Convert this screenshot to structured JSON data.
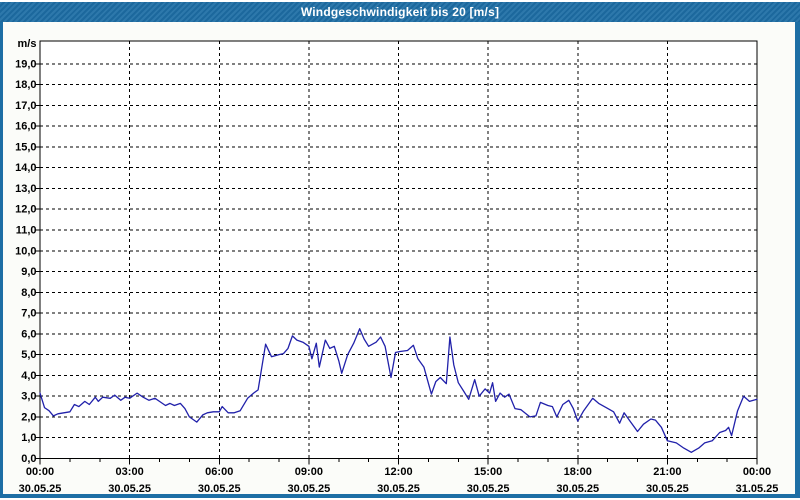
{
  "window": {
    "title": "Windgeschwindigkeit bis 20 [m/s]"
  },
  "colors": {
    "titlebar_blue": "#1d6ea5",
    "frame_blue": "#1d6ea5",
    "page_background": "#fbfcf9",
    "plot_background": "#ffffff",
    "grid_color": "#000000",
    "axis_color": "#000000",
    "series_line": "#2121aa",
    "title_text": "#ffffff",
    "label_text": "#000000"
  },
  "chart_data": {
    "type": "line",
    "title": "Windgeschwindigkeit bis 20 [m/s]",
    "ylabel_unit": "m/s",
    "xlabel": "",
    "ylim": [
      0,
      20
    ],
    "xlim_hours": [
      0,
      24
    ],
    "grid": "dashed",
    "legend": "none",
    "y_tick_step": 1.0,
    "y_tick_labels": [
      "0,0",
      "1,0",
      "2,0",
      "3,0",
      "4,0",
      "5,0",
      "6,0",
      "7,0",
      "8,0",
      "9,0",
      "10,0",
      "11,0",
      "12,0",
      "13,0",
      "14,0",
      "15,0",
      "16,0",
      "17,0",
      "18,0",
      "19,0"
    ],
    "x_major_ticks": [
      {
        "hour": 0,
        "time": "00:00",
        "date": "30.05.25"
      },
      {
        "hour": 3,
        "time": "03:00",
        "date": "30.05.25"
      },
      {
        "hour": 6,
        "time": "06:00",
        "date": "30.05.25"
      },
      {
        "hour": 9,
        "time": "09:00",
        "date": "30.05.25"
      },
      {
        "hour": 12,
        "time": "12:00",
        "date": "30.05.25"
      },
      {
        "hour": 15,
        "time": "15:00",
        "date": "30.05.25"
      },
      {
        "hour": 18,
        "time": "18:00",
        "date": "30.05.25"
      },
      {
        "hour": 21,
        "time": "21:00",
        "date": "30.05.25"
      },
      {
        "hour": 24,
        "time": "00:00",
        "date": "31.05.25"
      }
    ],
    "x_minor_tick_every_hours": 1,
    "series": [
      {
        "name": "Windgeschwindigkeit",
        "unit": "m/s",
        "color": "#2121aa",
        "points": [
          [
            0.0,
            3.15
          ],
          [
            0.15,
            2.45
          ],
          [
            0.3,
            2.3
          ],
          [
            0.45,
            2.05
          ],
          [
            0.6,
            2.15
          ],
          [
            0.8,
            2.2
          ],
          [
            1.0,
            2.25
          ],
          [
            1.15,
            2.6
          ],
          [
            1.3,
            2.5
          ],
          [
            1.5,
            2.75
          ],
          [
            1.65,
            2.6
          ],
          [
            1.85,
            2.95
          ],
          [
            1.95,
            2.75
          ],
          [
            2.1,
            2.95
          ],
          [
            2.35,
            2.9
          ],
          [
            2.5,
            3.05
          ],
          [
            2.7,
            2.8
          ],
          [
            2.85,
            2.95
          ],
          [
            3.0,
            2.9
          ],
          [
            3.25,
            3.15
          ],
          [
            3.45,
            2.95
          ],
          [
            3.65,
            2.8
          ],
          [
            3.85,
            2.9
          ],
          [
            4.0,
            2.75
          ],
          [
            4.2,
            2.55
          ],
          [
            4.35,
            2.65
          ],
          [
            4.5,
            2.55
          ],
          [
            4.7,
            2.65
          ],
          [
            4.85,
            2.4
          ],
          [
            5.0,
            2.0
          ],
          [
            5.25,
            1.75
          ],
          [
            5.45,
            2.1
          ],
          [
            5.6,
            2.2
          ],
          [
            5.8,
            2.25
          ],
          [
            6.0,
            2.25
          ],
          [
            6.1,
            2.5
          ],
          [
            6.3,
            2.2
          ],
          [
            6.5,
            2.2
          ],
          [
            6.7,
            2.3
          ],
          [
            6.95,
            2.9
          ],
          [
            7.15,
            3.15
          ],
          [
            7.3,
            3.3
          ],
          [
            7.55,
            5.5
          ],
          [
            7.75,
            4.9
          ],
          [
            8.0,
            5.0
          ],
          [
            8.15,
            5.05
          ],
          [
            8.3,
            5.3
          ],
          [
            8.45,
            5.9
          ],
          [
            8.6,
            5.7
          ],
          [
            8.8,
            5.6
          ],
          [
            9.0,
            5.4
          ],
          [
            9.1,
            4.8
          ],
          [
            9.25,
            5.55
          ],
          [
            9.35,
            4.4
          ],
          [
            9.55,
            5.7
          ],
          [
            9.7,
            5.3
          ],
          [
            9.85,
            5.4
          ],
          [
            10.0,
            4.7
          ],
          [
            10.1,
            4.1
          ],
          [
            10.3,
            5.0
          ],
          [
            10.5,
            5.55
          ],
          [
            10.7,
            6.25
          ],
          [
            10.85,
            5.75
          ],
          [
            11.0,
            5.4
          ],
          [
            11.25,
            5.6
          ],
          [
            11.4,
            5.85
          ],
          [
            11.55,
            5.4
          ],
          [
            11.75,
            3.9
          ],
          [
            11.9,
            5.1
          ],
          [
            12.05,
            5.15
          ],
          [
            12.3,
            5.2
          ],
          [
            12.5,
            5.45
          ],
          [
            12.65,
            4.8
          ],
          [
            12.85,
            4.4
          ],
          [
            13.1,
            3.1
          ],
          [
            13.25,
            3.7
          ],
          [
            13.4,
            3.9
          ],
          [
            13.6,
            3.6
          ],
          [
            13.72,
            5.85
          ],
          [
            13.85,
            4.5
          ],
          [
            14.0,
            3.65
          ],
          [
            14.2,
            3.2
          ],
          [
            14.35,
            2.85
          ],
          [
            14.55,
            3.8
          ],
          [
            14.7,
            3.0
          ],
          [
            14.9,
            3.35
          ],
          [
            15.05,
            3.15
          ],
          [
            15.15,
            3.65
          ],
          [
            15.25,
            2.75
          ],
          [
            15.4,
            3.15
          ],
          [
            15.55,
            2.95
          ],
          [
            15.7,
            3.1
          ],
          [
            15.9,
            2.4
          ],
          [
            16.1,
            2.35
          ],
          [
            16.4,
            2.0
          ],
          [
            16.6,
            2.05
          ],
          [
            16.75,
            2.7
          ],
          [
            17.0,
            2.55
          ],
          [
            17.15,
            2.5
          ],
          [
            17.3,
            2.0
          ],
          [
            17.5,
            2.6
          ],
          [
            17.7,
            2.8
          ],
          [
            17.85,
            2.4
          ],
          [
            18.0,
            1.8
          ],
          [
            18.2,
            2.3
          ],
          [
            18.5,
            2.9
          ],
          [
            18.7,
            2.65
          ],
          [
            18.95,
            2.45
          ],
          [
            19.2,
            2.25
          ],
          [
            19.4,
            1.7
          ],
          [
            19.55,
            2.2
          ],
          [
            19.75,
            1.8
          ],
          [
            20.0,
            1.3
          ],
          [
            20.2,
            1.65
          ],
          [
            20.45,
            1.9
          ],
          [
            20.6,
            1.85
          ],
          [
            20.8,
            1.5
          ],
          [
            21.0,
            0.85
          ],
          [
            21.3,
            0.75
          ],
          [
            21.55,
            0.5
          ],
          [
            21.8,
            0.3
          ],
          [
            22.05,
            0.5
          ],
          [
            22.25,
            0.75
          ],
          [
            22.5,
            0.85
          ],
          [
            22.75,
            1.25
          ],
          [
            22.95,
            1.35
          ],
          [
            23.05,
            1.5
          ],
          [
            23.15,
            1.1
          ],
          [
            23.35,
            2.3
          ],
          [
            23.55,
            3.0
          ],
          [
            23.75,
            2.75
          ],
          [
            24.0,
            2.85
          ]
        ]
      }
    ]
  }
}
